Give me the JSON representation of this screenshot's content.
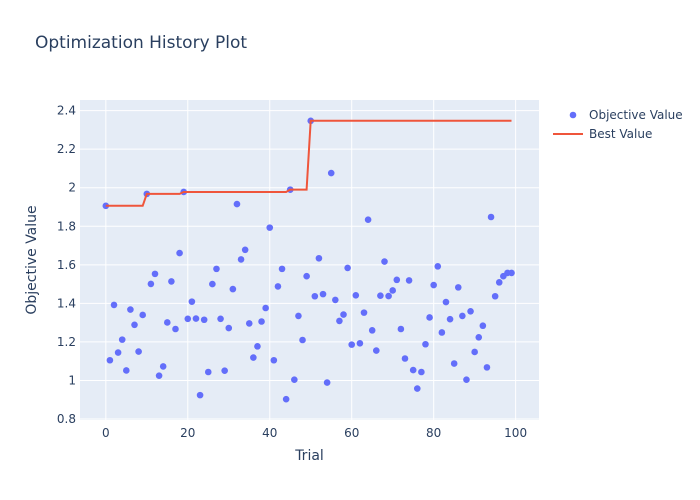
{
  "title": "Optimization History Plot",
  "colors": {
    "plot_bg": "#E5ECF6",
    "grid": "#ffffff",
    "marker": "#636efa",
    "line": "#EF553B",
    "text": "#2a3f5f"
  },
  "legend": {
    "items": [
      {
        "label": "Objective Value",
        "type": "marker"
      },
      {
        "label": "Best Value",
        "type": "line"
      }
    ]
  },
  "chart_data": {
    "type": "scatter",
    "title": "Optimization History Plot",
    "xlabel": "Trial",
    "ylabel": "Objective Value",
    "xlim": [
      -6.3,
      105.7
    ],
    "ylim": [
      0.795,
      2.455
    ],
    "xticks": [
      0,
      20,
      40,
      60,
      80,
      100
    ],
    "yticks": [
      0.8,
      1,
      1.2,
      1.4,
      1.6,
      1.8,
      2,
      2.2,
      2.4
    ],
    "xtick_labels": [
      "0",
      "20",
      "40",
      "60",
      "80",
      "100"
    ],
    "ytick_labels": [
      "0.8",
      "1",
      "1.2",
      "1.4",
      "1.6",
      "1.8",
      "2",
      "2.2",
      "2.4"
    ],
    "grid": true,
    "legend_position": "right-top",
    "series": [
      {
        "name": "Objective Value",
        "mode": "markers",
        "x": [
          0,
          1,
          2,
          3,
          4,
          5,
          6,
          7,
          8,
          9,
          10,
          11,
          12,
          13,
          14,
          15,
          16,
          17,
          18,
          19,
          20,
          21,
          22,
          23,
          24,
          25,
          26,
          27,
          28,
          29,
          30,
          31,
          32,
          33,
          34,
          35,
          36,
          37,
          38,
          39,
          40,
          41,
          42,
          43,
          44,
          45,
          46,
          47,
          48,
          49,
          50,
          51,
          52,
          53,
          54,
          55,
          56,
          57,
          58,
          59,
          60,
          61,
          62,
          63,
          64,
          65,
          66,
          67,
          68,
          69,
          70,
          71,
          72,
          73,
          74,
          75,
          76,
          77,
          78,
          79,
          80,
          81,
          82,
          83,
          84,
          85,
          86,
          87,
          88,
          89,
          90,
          91,
          92,
          93,
          94,
          95,
          96,
          97,
          98,
          99
        ],
        "values": [
          1.906,
          1.105,
          1.392,
          1.145,
          1.212,
          1.052,
          1.368,
          1.289,
          1.15,
          1.34,
          1.968,
          1.501,
          1.553,
          1.025,
          1.073,
          1.301,
          1.514,
          1.267,
          1.661,
          1.978,
          1.32,
          1.409,
          1.321,
          0.924,
          1.315,
          1.044,
          1.5,
          1.579,
          1.32,
          1.051,
          1.272,
          1.474,
          1.915,
          1.628,
          1.678,
          1.296,
          1.119,
          1.177,
          1.306,
          1.376,
          1.793,
          1.105,
          1.488,
          1.579,
          0.903,
          1.99,
          1.004,
          1.335,
          1.21,
          1.541,
          2.347,
          1.437,
          1.634,
          1.448,
          0.989,
          2.076,
          1.418,
          1.309,
          1.342,
          1.584,
          1.186,
          1.442,
          1.193,
          1.352,
          1.834,
          1.26,
          1.155,
          1.44,
          1.617,
          1.438,
          1.467,
          1.522,
          1.267,
          1.114,
          1.519,
          1.054,
          0.958,
          1.044,
          1.188,
          1.327,
          1.495,
          1.592,
          1.249,
          1.407,
          1.318,
          1.088,
          1.483,
          1.335,
          1.004,
          1.359,
          1.148,
          1.224,
          1.284,
          1.068,
          1.848,
          1.437,
          1.509,
          1.541,
          1.558,
          1.558
        ]
      },
      {
        "name": "Best Value",
        "mode": "lines",
        "x": [
          0,
          9,
          10,
          18,
          19,
          44,
          45,
          49,
          50,
          99
        ],
        "values": [
          1.906,
          1.906,
          1.968,
          1.968,
          1.978,
          1.978,
          1.99,
          1.99,
          2.347,
          2.347
        ]
      }
    ]
  }
}
